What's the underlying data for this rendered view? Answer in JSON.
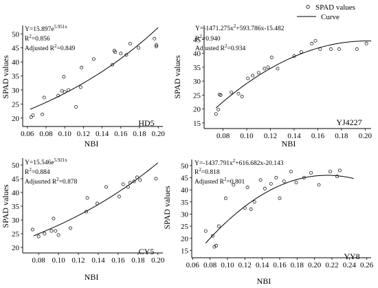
{
  "legend": {
    "scatter_label": "SPAD values",
    "curve_label": "Curve"
  },
  "chart_data": [
    {
      "id": "HD5",
      "type": "scatter",
      "tag": "HD5",
      "xlabel": "NBI",
      "ylabel": "SPAD values",
      "xlim": [
        0.055,
        0.205
      ],
      "ylim": [
        17,
        53
      ],
      "xticks": [
        0.06,
        0.08,
        0.1,
        0.12,
        0.14,
        0.16,
        0.18,
        0.2
      ],
      "xtick_labels": [
        "0.06",
        "0.08",
        "0.10",
        "0.12",
        "0.14",
        "0.16",
        "0.18",
        "0.20"
      ],
      "yticks": [
        20,
        25,
        30,
        35,
        40,
        45,
        50
      ],
      "equation": {
        "prefix": "Y=15.897e",
        "sup": "5.951x"
      },
      "r2": {
        "label": "R",
        "sup": "2",
        "value": "=0.856"
      },
      "adj_r2": {
        "label": "Adjusted R",
        "sup": "2",
        "value": "=0.849"
      },
      "curve": {
        "model": "exp",
        "a": 15.897,
        "b": 5.951,
        "x_from": 0.063,
        "x_to": 0.2
      },
      "x": [
        0.064,
        0.066,
        0.076,
        0.078,
        0.093,
        0.097,
        0.099,
        0.1,
        0.104,
        0.112,
        0.117,
        0.118,
        0.131,
        0.151,
        0.153,
        0.154,
        0.16,
        0.166,
        0.17,
        0.179,
        0.196,
        0.198,
        0.198
      ],
      "y": [
        20.3,
        21.0,
        21.3,
        27.3,
        28.0,
        29.7,
        34.7,
        29.3,
        30.0,
        24.0,
        31.0,
        38.0,
        41.0,
        39.0,
        44.0,
        43.5,
        43.0,
        42.5,
        46.5,
        45.0,
        48.3,
        46.0,
        45.5
      ]
    },
    {
      "id": "YJ4227",
      "type": "scatter",
      "tag": "YJ4227",
      "xlabel": "NBI",
      "ylabel": "SPAD values",
      "xlim": [
        0.064,
        0.205
      ],
      "ylim": [
        13,
        50
      ],
      "xticks": [
        0.08,
        0.1,
        0.12,
        0.14,
        0.16,
        0.18,
        0.2
      ],
      "xtick_labels": [
        "0.08",
        "0.10",
        "0.12",
        "0.14",
        "0.16",
        "0.18",
        "0.20"
      ],
      "yticks": [
        15,
        20,
        25,
        30,
        35,
        40,
        45
      ],
      "equation": {
        "parts": [
          "Y=-1471.275x",
          "2",
          "+593.786x-15.482"
        ]
      },
      "r2": {
        "label": "R",
        "sup": "2",
        "value": "=0.940"
      },
      "adj_r2": {
        "label": "Adjusted R",
        "sup": "2",
        "value": "=0.934"
      },
      "curve": {
        "model": "quad",
        "a": -1471.275,
        "b": 593.786,
        "c": -15.482,
        "x_from": 0.074,
        "x_to": 0.205
      },
      "x": [
        0.074,
        0.076,
        0.077,
        0.078,
        0.087,
        0.093,
        0.096,
        0.101,
        0.105,
        0.11,
        0.115,
        0.118,
        0.121,
        0.126,
        0.14,
        0.146,
        0.155,
        0.158,
        0.162,
        0.171,
        0.178,
        0.193,
        0.201
      ],
      "y": [
        18.2,
        19.8,
        25.2,
        25.0,
        26.0,
        25.5,
        24.5,
        31.0,
        32.0,
        33.0,
        34.5,
        35.0,
        38.5,
        34.5,
        39.0,
        40.5,
        43.5,
        44.5,
        41.5,
        41.5,
        41.5,
        41.5,
        43.5
      ]
    },
    {
      "id": "CY5",
      "type": "scatter",
      "tag": "CY5",
      "xlabel": "NBI",
      "ylabel": "SPAD values",
      "xlim": [
        0.064,
        0.205
      ],
      "ylim": [
        18,
        52.5
      ],
      "xticks": [
        0.08,
        0.1,
        0.12,
        0.14,
        0.16,
        0.18,
        0.2
      ],
      "xtick_labels": [
        "0.08",
        "0.10",
        "0.12",
        "0.14",
        "0.16",
        "0.18",
        "0.20"
      ],
      "yticks": [
        20,
        25,
        30,
        35,
        40,
        45,
        50
      ],
      "equation": {
        "prefix": "Y=15.546e",
        "sup": "5.921x"
      },
      "r2": {
        "label": "R",
        "sup": "2",
        "value": "=0.884"
      },
      "adj_r2": {
        "label": "Adjusrted R",
        "sup": "2",
        "value": "=0.878"
      },
      "curve": {
        "model": "exp",
        "a": 15.546,
        "b": 5.921,
        "x_from": 0.075,
        "x_to": 0.2
      },
      "x": [
        0.074,
        0.08,
        0.086,
        0.093,
        0.095,
        0.097,
        0.1,
        0.112,
        0.128,
        0.129,
        0.139,
        0.148,
        0.161,
        0.165,
        0.17,
        0.172,
        0.176,
        0.179,
        0.182,
        0.198
      ],
      "y": [
        26.5,
        24.0,
        25.0,
        26.0,
        30.5,
        26.0,
        24.5,
        27.0,
        33.0,
        38.0,
        36.0,
        42.0,
        38.5,
        43.0,
        42.0,
        43.5,
        44.0,
        45.5,
        44.5,
        45.0
      ]
    },
    {
      "id": "YY8",
      "type": "scatter",
      "tag": "YY8",
      "xlabel": "NBI",
      "ylabel": "SPAD values",
      "xlim": [
        0.059,
        0.265
      ],
      "ylim": [
        12,
        52.5
      ],
      "xticks": [
        0.06,
        0.08,
        0.1,
        0.12,
        0.14,
        0.16,
        0.18,
        0.2,
        0.22,
        0.24,
        0.26
      ],
      "xtick_labels": [
        "0.06",
        "0.08",
        "0.10",
        "0.12",
        "0.14",
        "0.16",
        "0.18",
        "0.20",
        "0.22",
        "0.24",
        "0.26"
      ],
      "yticks": [
        15,
        20,
        25,
        30,
        35,
        40,
        45,
        50
      ],
      "equation": {
        "parts": [
          "Y=-1437.791x",
          "2",
          "+616.682x-20.143"
        ]
      },
      "r2": {
        "label": "R",
        "sup": "2",
        "value": "=0.818"
      },
      "adj_r2": {
        "label": "Adjusted R",
        "sup": "2",
        "value": "=0.801"
      },
      "curve": {
        "model": "quad",
        "a": -1437.791,
        "b": 616.682,
        "c": -20.143,
        "x_from": 0.075,
        "x_to": 0.245
      },
      "x": [
        0.075,
        0.083,
        0.085,
        0.087,
        0.09,
        0.098,
        0.107,
        0.12,
        0.123,
        0.127,
        0.131,
        0.138,
        0.143,
        0.15,
        0.156,
        0.16,
        0.165,
        0.173,
        0.179,
        0.188,
        0.196,
        0.205,
        0.218,
        0.226,
        0.229
      ],
      "y": [
        23.0,
        21.0,
        16.5,
        17.0,
        25.0,
        36.5,
        42.0,
        32.5,
        41.0,
        32.0,
        35.0,
        44.0,
        40.5,
        42.5,
        45.0,
        36.5,
        43.5,
        47.5,
        43.0,
        45.0,
        47.0,
        42.0,
        47.5,
        45.5,
        48.0
      ]
    }
  ]
}
